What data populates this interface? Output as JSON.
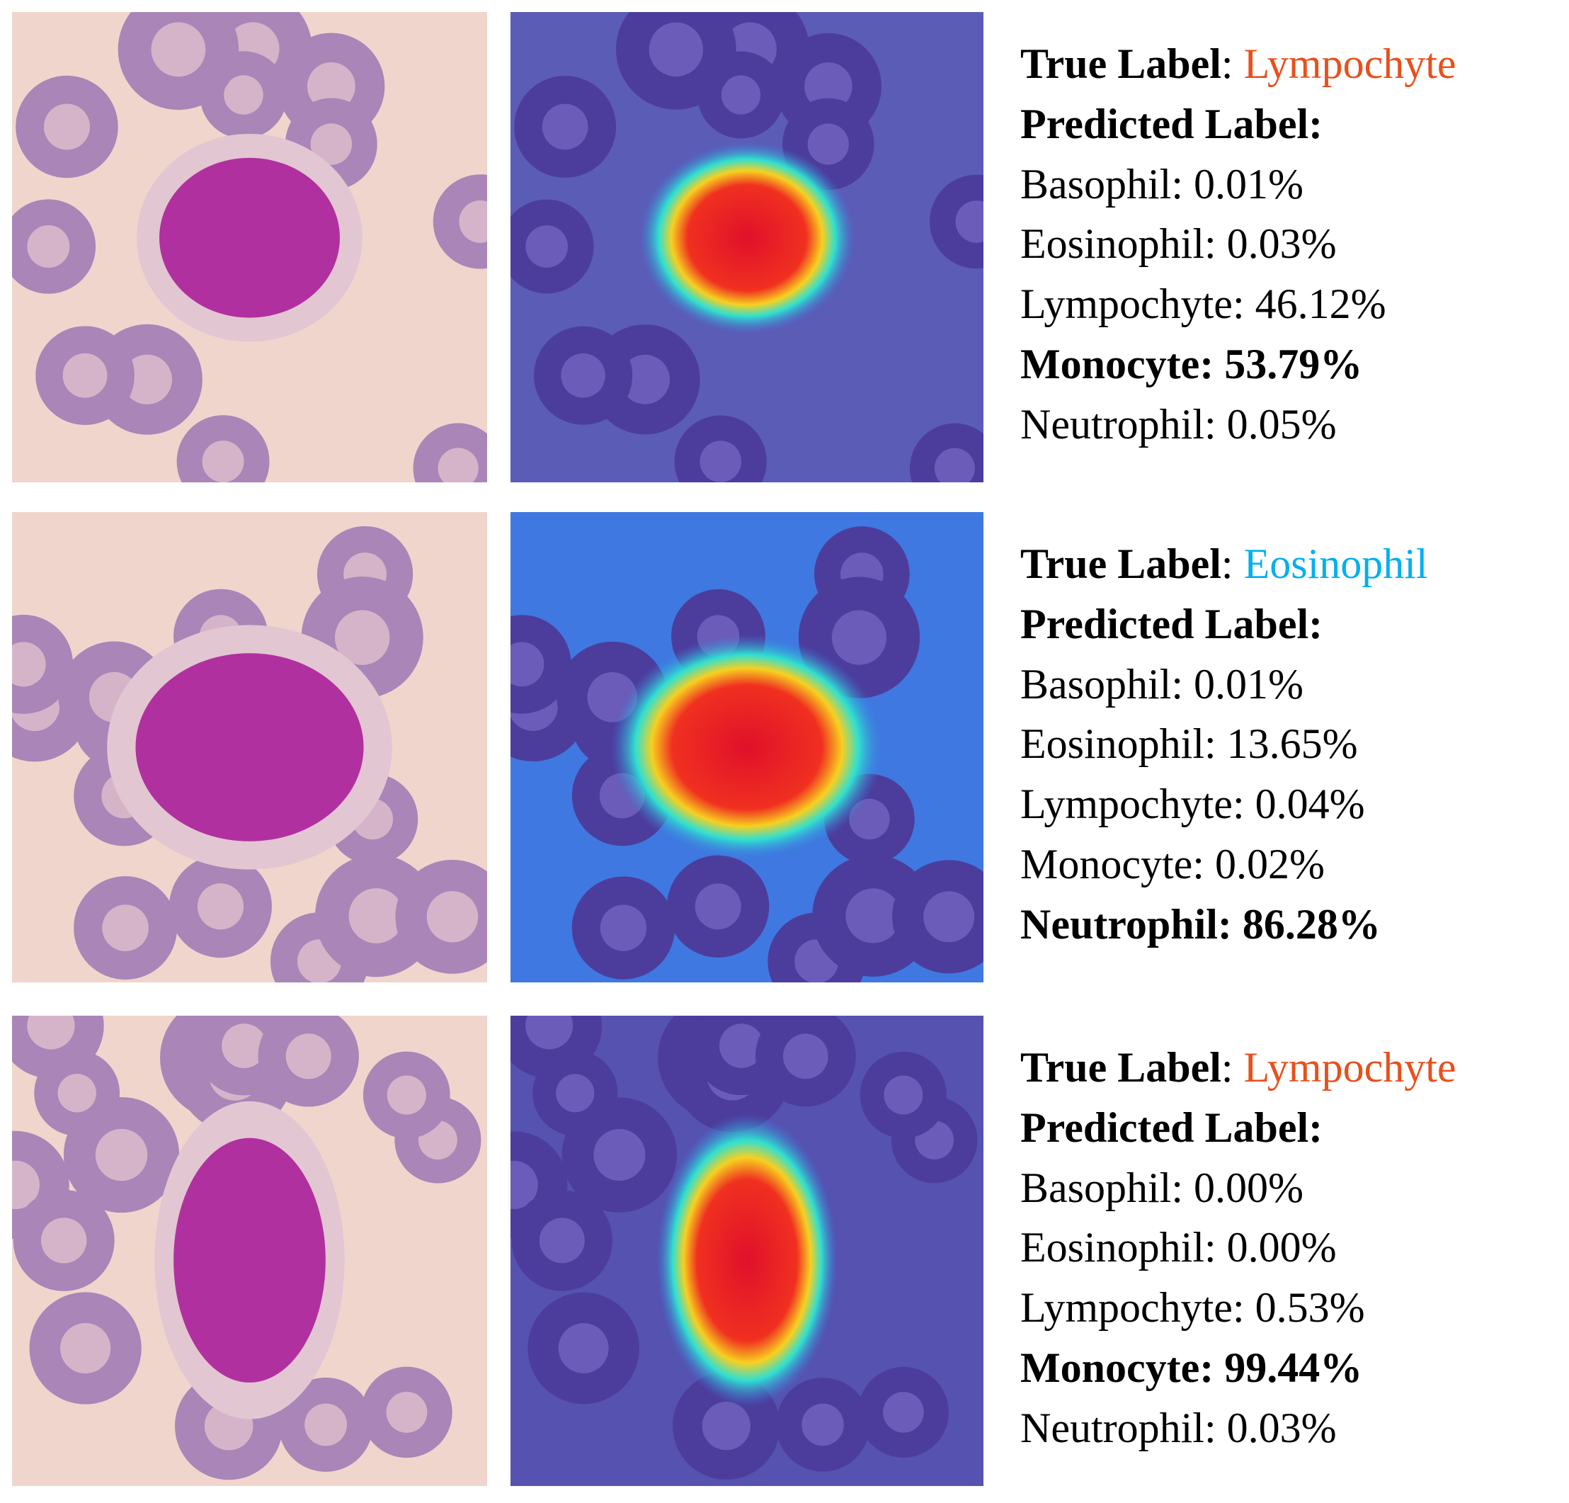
{
  "rows": [
    {
      "true_label_prefix": "True Label",
      "true_label": "Lympochyte",
      "true_label_color": "#e8501c",
      "predicted_heading": "Predicted Label:",
      "probabilities": [
        {
          "text": "Basophil: 0.01%"
        },
        {
          "text": "Eosinophil: 0.03%"
        },
        {
          "text": "Lympochyte: 46.12%"
        },
        {
          "text": "Monocyte: 53.79%",
          "color": "#00b050"
        },
        {
          "text": "Neutrophil: 0.05%"
        }
      ]
    },
    {
      "true_label_prefix": "True Label",
      "true_label": "Eosinophil",
      "true_label_color": "#00b0f0",
      "predicted_heading": "Predicted Label:",
      "probabilities": [
        {
          "text": "Basophil: 0.01%"
        },
        {
          "text": "Eosinophil: 13.65%"
        },
        {
          "text": "Lympochyte: 0.04%"
        },
        {
          "text": "Monocyte: 0.02%"
        },
        {
          "text": "Neutrophil: 86.28%",
          "color": "#7030a0"
        }
      ]
    },
    {
      "true_label_prefix": "True Label",
      "true_label": "Lympochyte",
      "true_label_color": "#e8501c",
      "predicted_heading": "Predicted Label:",
      "probabilities": [
        {
          "text": "Basophil: 0.00%"
        },
        {
          "text": "Eosinophil: 0.00%"
        },
        {
          "text": "Lympochyte: 0.53%"
        },
        {
          "text": "Monocyte: 99.44%",
          "color": "#00b050"
        },
        {
          "text": "Neutrophil: 0.03%"
        }
      ]
    }
  ]
}
